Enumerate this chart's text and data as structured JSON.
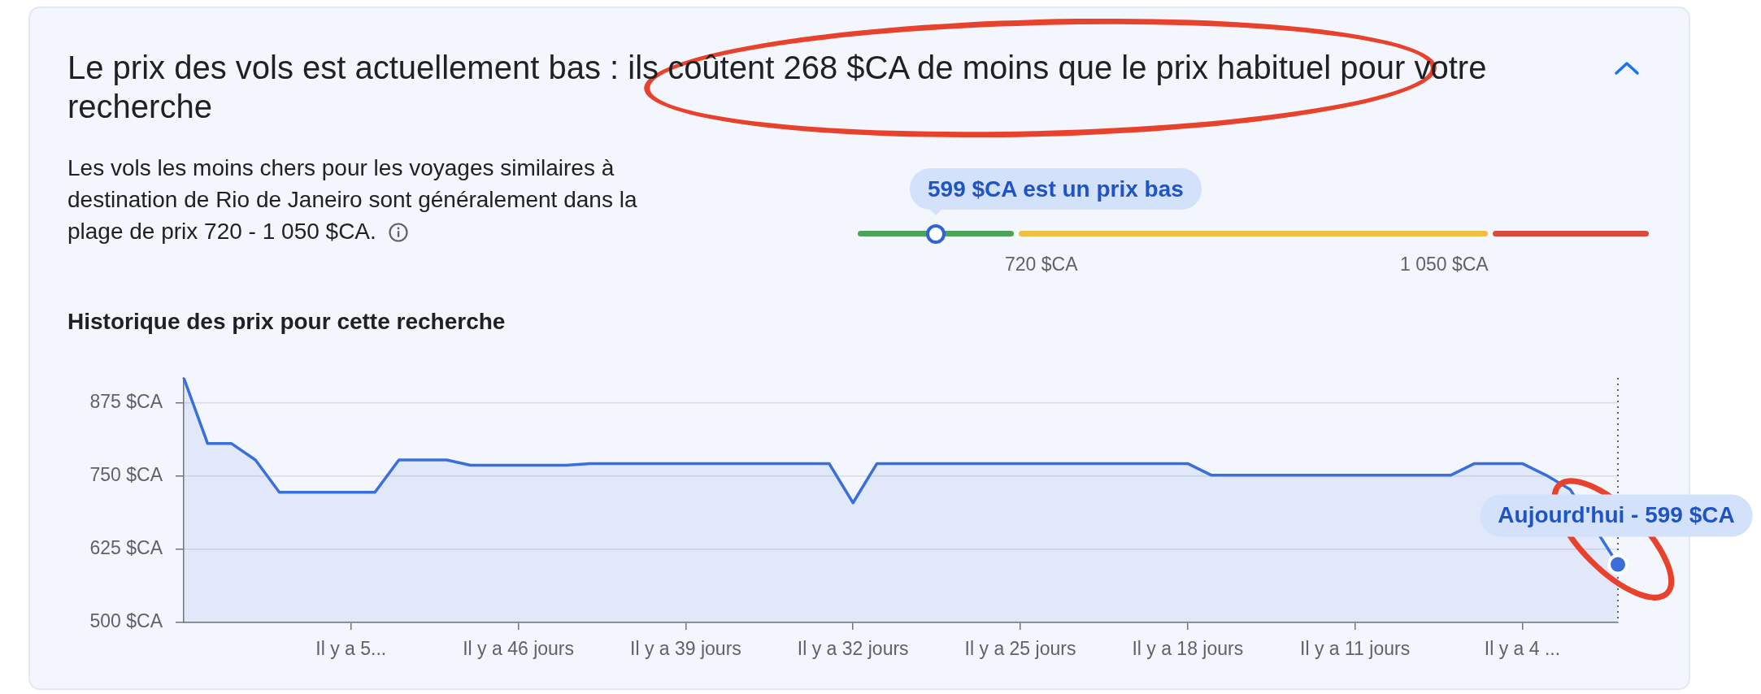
{
  "chart_data": [
    {
      "type": "other",
      "title": "Le prix des vols est actuellement bas : ils coûtent 268 $CA de moins que le prix habituel pour votre recherche",
      "subtitle": "Les vols les moins chers pour les voyages similaires à destination de Rio de Janeiro sont généralement dans la plage de prix 720 - 1 050 $CA.",
      "annotations": [
        "599 $CA est un prix bas",
        "720 $CA",
        "1 050 $CA"
      ]
    },
    {
      "type": "area",
      "title": "Historique des prix pour cette recherche",
      "categories": [
        null,
        null,
        null,
        null,
        null,
        null,
        null,
        "Il y a 5...",
        null,
        null,
        null,
        null,
        null,
        null,
        "Il y a 46 jours",
        null,
        null,
        null,
        null,
        null,
        null,
        "Il y a 39 jours",
        null,
        null,
        null,
        null,
        null,
        null,
        "Il y a 32 jours",
        null,
        null,
        null,
        null,
        null,
        null,
        "Il y a 25 jours",
        null,
        null,
        null,
        null,
        null,
        null,
        "Il y a 18 jours",
        null,
        null,
        null,
        null,
        null,
        null,
        "Il y a 11 jours",
        null,
        null,
        null,
        null,
        null,
        null,
        "Il y a 4 ...",
        null,
        null,
        null,
        null
      ],
      "series": [
        {
          "color": "#3a6fdb",
          "values": [
            917,
            805,
            805,
            777,
            722,
            722,
            722,
            722,
            722,
            777,
            777,
            777,
            768,
            768,
            768,
            768,
            768,
            771,
            771,
            771,
            771,
            771,
            771,
            771,
            771,
            771,
            771,
            771,
            704,
            771,
            771,
            771,
            771,
            771,
            771,
            771,
            771,
            771,
            771,
            771,
            771,
            771,
            771,
            751,
            751,
            751,
            751,
            751,
            751,
            751,
            751,
            751,
            751,
            751,
            771,
            771,
            771,
            751,
            727,
            null,
            599
          ]
        },
        {
          "type": "scatter",
          "color": "#3a6fdb",
          "values": [
            null,
            null,
            null,
            null,
            null,
            null,
            null,
            null,
            null,
            null,
            null,
            null,
            null,
            null,
            null,
            null,
            null,
            null,
            null,
            null,
            null,
            null,
            null,
            null,
            null,
            null,
            null,
            null,
            null,
            null,
            null,
            null,
            null,
            null,
            null,
            null,
            null,
            null,
            null,
            null,
            null,
            null,
            null,
            null,
            null,
            null,
            null,
            null,
            null,
            null,
            null,
            null,
            null,
            null,
            null,
            null,
            null,
            null,
            null,
            null,
            599
          ]
        }
      ],
      "ylim": [
        500,
        917
      ],
      "yticks": [
        {
          "value": 500,
          "label": "500 $CA"
        },
        {
          "value": 625,
          "label": "625 $CA"
        },
        {
          "value": 750,
          "label": "750 $CA"
        },
        {
          "value": 875,
          "label": "875 $CA"
        }
      ],
      "grid": "y",
      "annotations": [
        {
          "text": "Aujourd'hui - 599 $CA",
          "y": 599
        }
      ]
    }
  ]
}
